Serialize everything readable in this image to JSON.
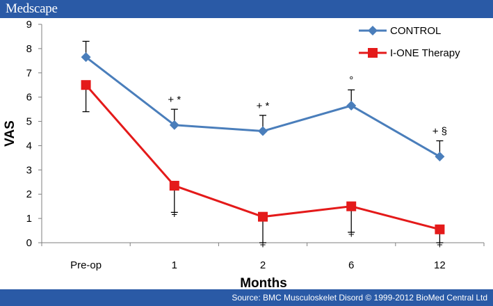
{
  "header": {
    "brand": "Medscape"
  },
  "footer": {
    "source": "Source: BMC Musculoskelet Disord © 1999-2012 BioMed Central Ltd"
  },
  "chart_data": {
    "type": "line",
    "categories": [
      "Pre-op",
      "1",
      "2",
      "6",
      "12"
    ],
    "xlabel": "Months",
    "ylabel": "VAS",
    "ylim": [
      0,
      9
    ],
    "yticks": [
      "0",
      "1",
      "2",
      "3",
      "4",
      "5",
      "6",
      "7",
      "8",
      "9"
    ],
    "grid": false,
    "legend": "top-right",
    "series": [
      {
        "name": "CONTROL",
        "color": "#4a7ebb",
        "marker": "diamond",
        "values": [
          7.65,
          4.85,
          4.6,
          5.65,
          3.55
        ],
        "errors": [
          0.65,
          0.65,
          0.65,
          0.65,
          0.65
        ],
        "error_dir": "up",
        "annotations": [
          "",
          "+ *",
          "+ *",
          "°",
          "+ §"
        ]
      },
      {
        "name": "I-ONE Therapy",
        "color": "#e41a1a",
        "marker": "square",
        "values": [
          6.5,
          2.35,
          1.07,
          1.5,
          0.55
        ],
        "errors": [
          1.1,
          1.1,
          1.07,
          1.07,
          0.55
        ],
        "error_dir": "down",
        "annotations": [
          "",
          "+",
          "+",
          "+",
          "+"
        ]
      }
    ]
  }
}
